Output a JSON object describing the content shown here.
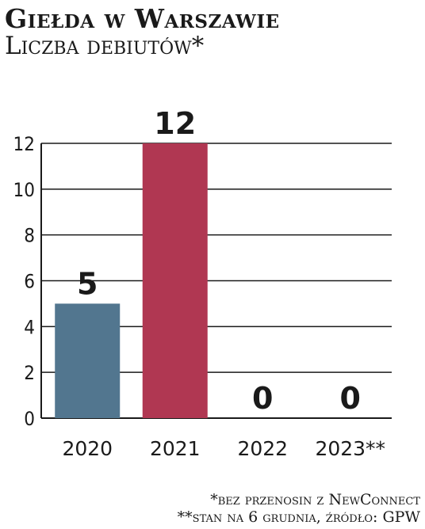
{
  "header": {
    "title": "Giełda w Warszawie",
    "subtitle": "Liczba debiutów*"
  },
  "footnotes": {
    "note1": "*bez przenosin z NewConnect",
    "note2": "**stan na 6 grudnia, źródło: GPW"
  },
  "colors": {
    "bar_2020": "#52768f",
    "bar_2021": "#b03752",
    "gridline": "#1a1a1a"
  },
  "chart_data": {
    "type": "bar",
    "title": "Giełda w Warszawie",
    "subtitle": "Liczba debiutów*",
    "categories": [
      "2020",
      "2021",
      "2022",
      "2023**"
    ],
    "values": [
      5,
      12,
      0,
      0
    ],
    "data_labels": [
      "5",
      "12",
      "0",
      "0"
    ],
    "ylim": [
      0,
      12
    ],
    "yticks": [
      "0",
      "2",
      "4",
      "6",
      "8",
      "10",
      "12"
    ],
    "grid": true,
    "legend": "none"
  }
}
